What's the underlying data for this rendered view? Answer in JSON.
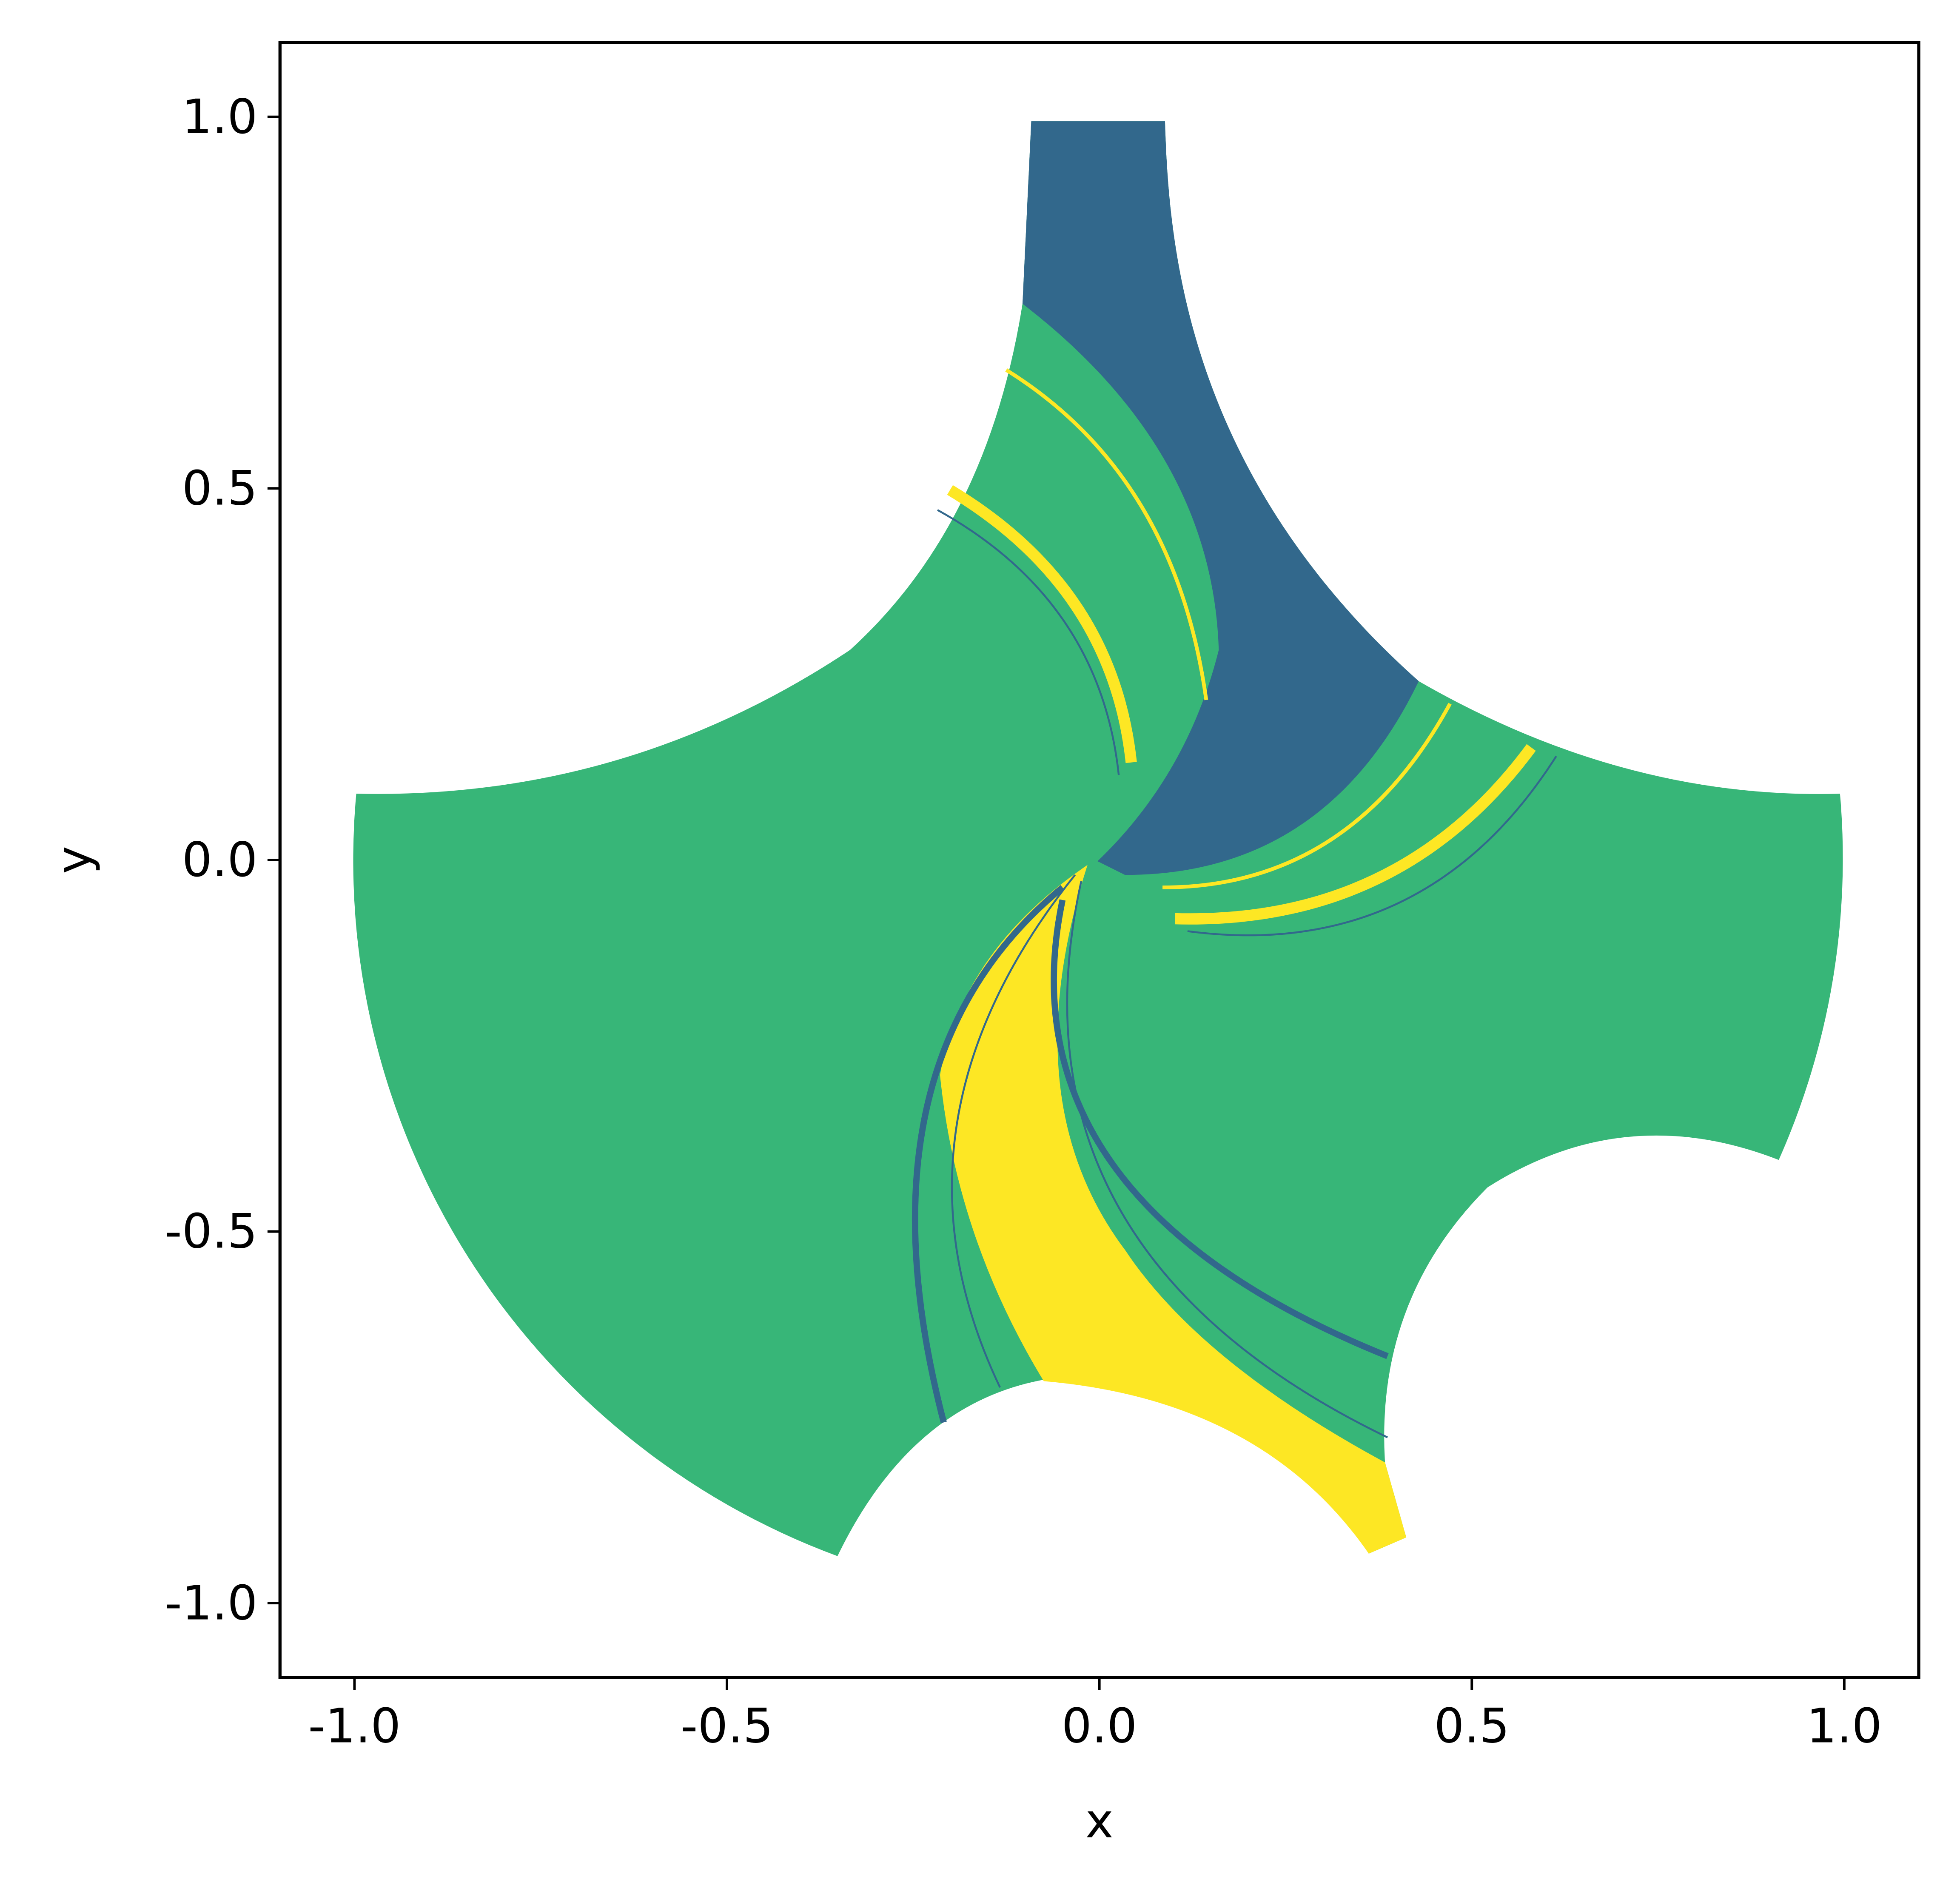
{
  "chart_data": {
    "type": "image",
    "xlabel": "x",
    "ylabel": "y",
    "xlim": [
      -1.1,
      1.1
    ],
    "ylim": [
      -1.1,
      1.1
    ],
    "xticks": [
      {
        "value": -1,
        "label": "-1.0"
      },
      -0.5,
      {
        "value": 0,
        "label": "0.0"
      },
      0.5,
      {
        "value": 1,
        "label": "1.0"
      }
    ],
    "yticks": [
      {
        "value": -1,
        "label": "-1.0"
      },
      -0.5,
      {
        "value": 0,
        "label": "0.0"
      },
      0.5,
      {
        "value": 1,
        "label": "1.0"
      }
    ]
  }
}
